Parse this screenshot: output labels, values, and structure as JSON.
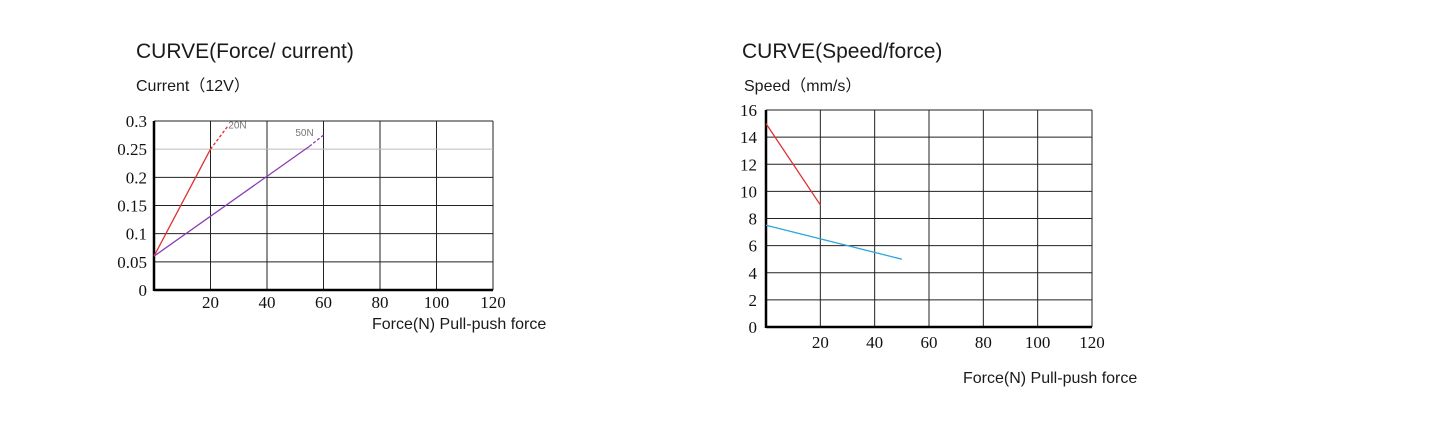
{
  "chart_data": [
    {
      "type": "line",
      "title": "CURVE(Force/ current)",
      "ylabel": "Current（12V）",
      "xlabel": "Force(N) Pull-push force",
      "xlim": [
        0,
        120
      ],
      "ylim": [
        0,
        0.3
      ],
      "x_ticks": [
        20,
        40,
        60,
        80,
        100,
        120
      ],
      "y_ticks": [
        "0",
        "0.05",
        "0.1",
        "0.15",
        "0.2",
        "0.25",
        "0.3"
      ],
      "grid": true,
      "series": [
        {
          "name": "20N",
          "color": "#e03030",
          "x": [
            0,
            20
          ],
          "y": [
            0.06,
            0.25
          ],
          "dashed_extension": {
            "x": [
              20,
              26
            ],
            "y": [
              0.25,
              0.29
            ]
          }
        },
        {
          "name": "50N",
          "color": "#8a3cb4",
          "x": [
            0,
            55
          ],
          "y": [
            0.06,
            0.255
          ],
          "dashed_extension": {
            "x": [
              55,
              60
            ],
            "y": [
              0.255,
              0.275
            ]
          }
        }
      ],
      "annotations": [
        "20N",
        "50N"
      ]
    },
    {
      "type": "line",
      "title": "CURVE(Speed/force)",
      "ylabel": "Speed（mm/s）",
      "xlabel": "Force(N) Pull-push force",
      "xlim": [
        0,
        120
      ],
      "ylim": [
        0,
        16
      ],
      "x_ticks": [
        20,
        40,
        60,
        80,
        100,
        120
      ],
      "y_ticks": [
        "0",
        "2",
        "4",
        "6",
        "8",
        "10",
        "12",
        "14",
        "16"
      ],
      "grid": true,
      "series": [
        {
          "color": "#e03030",
          "x": [
            0,
            20
          ],
          "y": [
            15,
            9
          ]
        },
        {
          "color": "#2aa8d8",
          "x": [
            0,
            50
          ],
          "y": [
            7.5,
            5
          ]
        }
      ]
    }
  ]
}
